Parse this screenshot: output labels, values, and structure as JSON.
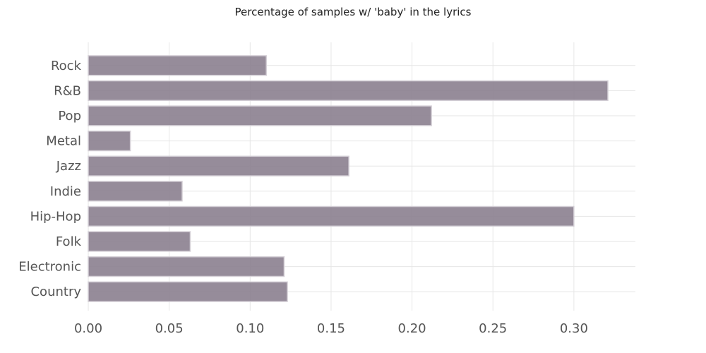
{
  "chart_data": {
    "type": "bar",
    "orientation": "horizontal",
    "title": "Percentage of samples w/ 'baby' in the lyrics",
    "xlabel": "",
    "ylabel": "",
    "categories": [
      "Rock",
      "R&B",
      "Pop",
      "Metal",
      "Jazz",
      "Indie",
      "Hip-Hop",
      "Folk",
      "Electronic",
      "Country"
    ],
    "values": [
      0.11,
      0.321,
      0.212,
      0.026,
      0.161,
      0.058,
      0.3,
      0.063,
      0.121,
      0.123
    ],
    "xlim": [
      0,
      0.338
    ],
    "xticks": [
      "0.00",
      "0.05",
      "0.10",
      "0.15",
      "0.20",
      "0.25",
      "0.30"
    ],
    "grid": true,
    "bar_color": "#8b7f8f",
    "bar_edge_color": "#d4cfd6",
    "grid_color": "#e6e6e6"
  }
}
